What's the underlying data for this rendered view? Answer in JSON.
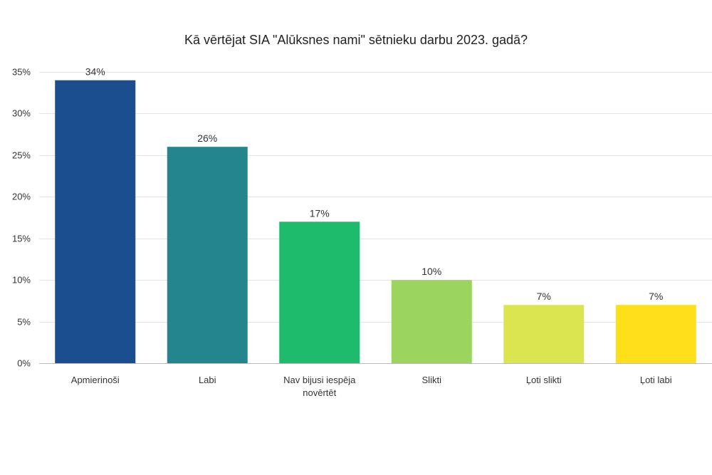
{
  "chart_data": {
    "type": "bar",
    "title": "Kā vērtējat SIA \"Alūksnes nami\" sētnieku darbu 2023. gadā?",
    "xlabel": "",
    "ylabel": "",
    "ylim": [
      0,
      35
    ],
    "yticks": [
      0,
      5,
      10,
      15,
      20,
      25,
      30,
      35
    ],
    "ytick_labels": [
      "0%",
      "5%",
      "10%",
      "15%",
      "20%",
      "25%",
      "30%",
      "35%"
    ],
    "grid": true,
    "categories": [
      [
        "Apmierinoši"
      ],
      [
        "Labi"
      ],
      [
        "Nav bijusi iespēja",
        "novērtēt"
      ],
      [
        "Slikti"
      ],
      [
        "Ļoti slikti"
      ],
      [
        "Ļoti labi"
      ]
    ],
    "values": [
      34,
      26,
      17,
      10,
      7,
      7
    ],
    "value_labels": [
      "34%",
      "26%",
      "17%",
      "10%",
      "7%",
      "7%"
    ],
    "colors": [
      "#1b4e8e",
      "#23868f",
      "#1dbb6b",
      "#9cd55d",
      "#dbe550",
      "#fde01a"
    ]
  }
}
